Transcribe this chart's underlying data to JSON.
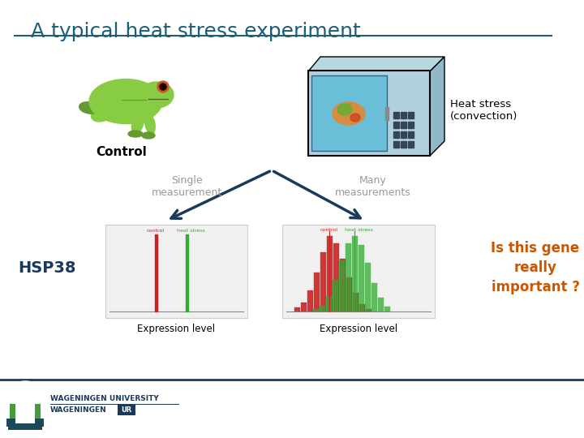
{
  "title": "A typical heat stress experiment",
  "title_color": "#1a5f7a",
  "title_fontsize": 18,
  "control_label": "Control",
  "heat_stress_label1": "Heat stress",
  "heat_stress_label2": "(convection)",
  "single_meas_label": "Single\nmeasurement",
  "many_meas_label": "Many\nmeasurements",
  "hsp38_label": "HSP38",
  "expression_level": "Expression level",
  "is_this_gene": "Is this gene\nreally\nimportant ?",
  "is_this_gene_color": "#cc5500",
  "label_color_gray": "#999999",
  "arrow_color": "#1a3a5c",
  "uni_text1": "WAGENINGEN UNIVERSITY",
  "uni_text2": "WAGENINGEN",
  "uni_text2b": "UR",
  "footer_line_color": "#1a3a5c",
  "many_hist_red": "#cc2222",
  "many_hist_green": "#33aa33"
}
